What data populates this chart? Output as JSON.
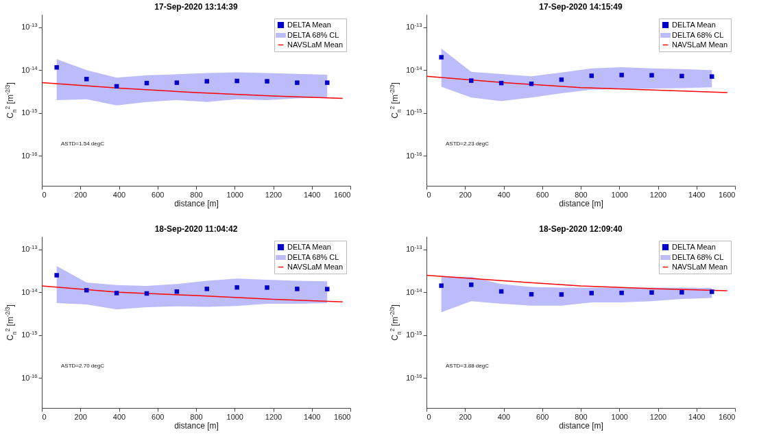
{
  "chart_data": [
    {
      "type": "scatter",
      "title": "17-Sep-2020 13:14:39",
      "xlabel": "distance [m]",
      "ylabel": "C$_{n}$$^{2}$ [m$^{-2/3}$]",
      "log": true,
      "legend": "top right",
      "xlim": [
        0,
        1600
      ],
      "xticks": [
        0,
        200,
        400,
        600,
        800,
        1000,
        1200,
        1400,
        1600
      ],
      "ylim": [
        2e-17,
        2e-13
      ],
      "yticks": [
        {
          "value": 1e-16,
          "label": "10$^{-16}$"
        },
        {
          "value": 1e-15,
          "label": "10$^{-15}$"
        },
        {
          "value": 1e-14,
          "label": "10$^{-14}$"
        },
        {
          "value": 1e-13,
          "label": "10$^{-13}$"
        }
      ],
      "annotations": [
        "ASTD=1.54 degC"
      ],
      "series": [
        {
          "name": "DELTA Mean",
          "marker": "square",
          "color": "#0000c8",
          "x": [
            77,
            232,
            388,
            544,
            700,
            856,
            1012,
            1168,
            1324,
            1480
          ],
          "values": [
            1.16e-14,
            6.2e-15,
            4.2e-15,
            5e-15,
            5.1e-15,
            5.5e-15,
            5.6e-15,
            5.5e-15,
            5.1e-15,
            5.1e-15
          ]
        },
        {
          "name": "DELTA 68% CL",
          "type": "area",
          "color": "#bcbcfa",
          "x": [
            77,
            232,
            388,
            544,
            700,
            856,
            1012,
            1168,
            1324,
            1480
          ],
          "values": [
            null,
            null,
            null,
            null,
            null,
            null,
            null,
            null,
            null,
            null
          ],
          "lower": [
            2e-15,
            2.1e-15,
            1.5e-15,
            1.8e-15,
            2e-15,
            1.8e-15,
            2.1e-15,
            2e-15,
            2.2e-15,
            2.3e-15
          ],
          "upper": [
            1.8e-14,
            1e-14,
            6.7e-15,
            7.6e-15,
            8e-15,
            8.6e-15,
            8.9e-15,
            8.6e-15,
            8.2e-15,
            7.8e-15
          ]
        },
        {
          "name": "NAVSLaM Mean",
          "type": "line",
          "color": "#ff0000",
          "x": [
            0,
            400,
            800,
            1200,
            1560
          ],
          "values": [
            5.1e-15,
            3.8e-15,
            3e-15,
            2.5e-15,
            2.2e-15
          ]
        }
      ]
    },
    {
      "type": "scatter",
      "title": "17-Sep-2020 14:15:49",
      "xlabel": "distance [m]",
      "ylabel": "C$_{n}$$^{2}$ [m$^{-2/3}$]",
      "log": true,
      "legend": "top right",
      "xlim": [
        0,
        1600
      ],
      "xticks": [
        0,
        200,
        400,
        600,
        800,
        1000,
        1200,
        1400,
        1600
      ],
      "ylim": [
        2e-17,
        2e-13
      ],
      "yticks": [
        {
          "value": 1e-16,
          "label": "10$^{-16}$"
        },
        {
          "value": 1e-15,
          "label": "10$^{-15}$"
        },
        {
          "value": 1e-14,
          "label": "10$^{-14}$"
        },
        {
          "value": 1e-13,
          "label": "10$^{-13}$"
        }
      ],
      "annotations": [
        "ASTD=2.23 degC"
      ],
      "series": [
        {
          "name": "DELTA Mean",
          "marker": "square",
          "color": "#0000c8",
          "x": [
            77,
            232,
            388,
            544,
            700,
            856,
            1012,
            1168,
            1324,
            1480
          ],
          "values": [
            2e-14,
            5.7e-15,
            5e-15,
            4.8e-15,
            6e-15,
            7.4e-15,
            7.7e-15,
            7.6e-15,
            7.3e-15,
            7.1e-15
          ]
        },
        {
          "name": "DELTA 68% CL",
          "type": "area",
          "color": "#bcbcfa",
          "x": [
            77,
            232,
            388,
            544,
            700,
            856,
            1012,
            1168,
            1324,
            1480
          ],
          "values": [
            null,
            null,
            null,
            null,
            null,
            null,
            null,
            null,
            null,
            null
          ],
          "lower": [
            4.1e-15,
            2.3e-15,
            1.9e-15,
            2.3e-15,
            2.9e-15,
            3.5e-15,
            3.6e-15,
            3.7e-15,
            3.8e-15,
            4e-15
          ],
          "upper": [
            3.2e-14,
            9.1e-15,
            8.1e-15,
            7.2e-15,
            8.8e-15,
            1.1e-14,
            1.17e-14,
            1.1e-14,
            1.06e-14,
            1e-14
          ]
        },
        {
          "name": "NAVSLaM Mean",
          "type": "line",
          "color": "#ff0000",
          "x": [
            0,
            400,
            800,
            1200,
            1560
          ],
          "values": [
            7.2e-15,
            5.1e-15,
            3.9e-15,
            3.4e-15,
            3e-15
          ]
        }
      ]
    },
    {
      "type": "scatter",
      "title": "18-Sep-2020 11:04:42",
      "xlabel": "distance [m]",
      "ylabel": "C$_{n}$$^{2}$ [m$^{-2/3}$]",
      "log": true,
      "legend": "top right",
      "xlim": [
        0,
        1600
      ],
      "xticks": [
        0,
        200,
        400,
        600,
        800,
        1000,
        1200,
        1400,
        1600
      ],
      "ylim": [
        2e-17,
        2e-13
      ],
      "yticks": [
        {
          "value": 1e-16,
          "label": "10$^{-16}$"
        },
        {
          "value": 1e-15,
          "label": "10$^{-15}$"
        },
        {
          "value": 1e-14,
          "label": "10$^{-14}$"
        },
        {
          "value": 1e-13,
          "label": "10$^{-13}$"
        }
      ],
      "annotations": [
        "ASTD=2.70 degC"
      ],
      "series": [
        {
          "name": "DELTA Mean",
          "marker": "square",
          "color": "#0000c8",
          "x": [
            77,
            232,
            388,
            544,
            700,
            856,
            1012,
            1168,
            1324,
            1480
          ],
          "values": [
            2.5e-14,
            1.12e-14,
            9.6e-15,
            9.4e-15,
            1.04e-14,
            1.2e-14,
            1.3e-14,
            1.29e-14,
            1.2e-14,
            1.19e-14
          ]
        },
        {
          "name": "DELTA 68% CL",
          "type": "area",
          "color": "#bcbcfa",
          "x": [
            77,
            232,
            388,
            544,
            700,
            856,
            1012,
            1168,
            1324,
            1480
          ],
          "values": [
            null,
            null,
            null,
            null,
            null,
            null,
            null,
            null,
            null,
            null
          ],
          "lower": [
            5.6e-15,
            5.2e-15,
            4e-15,
            4.5e-15,
            4.7e-15,
            4.6e-15,
            4.8e-15,
            5.4e-15,
            5.4e-15,
            5.6e-15
          ],
          "upper": [
            4.1e-14,
            1.7e-14,
            1.48e-14,
            1.41e-14,
            1.56e-14,
            1.86e-14,
            2.1e-14,
            1.96e-14,
            1.86e-14,
            1.8e-14
          ]
        },
        {
          "name": "NAVSLaM Mean",
          "type": "line",
          "color": "#ff0000",
          "x": [
            0,
            400,
            800,
            1200,
            1560
          ],
          "values": [
            1.41e-14,
            1e-14,
            8.4e-15,
            6.9e-15,
            6e-15
          ]
        }
      ]
    },
    {
      "type": "scatter",
      "title": "18-Sep-2020 12:09:40",
      "xlabel": "distance [m]",
      "ylabel": "C$_{n}$$^{2}$ [m$^{-2/3}$]",
      "log": true,
      "legend": "top right",
      "xlim": [
        0,
        1600
      ],
      "xticks": [
        0,
        200,
        400,
        600,
        800,
        1000,
        1200,
        1400,
        1600
      ],
      "ylim": [
        2e-17,
        2e-13
      ],
      "yticks": [
        {
          "value": 1e-16,
          "label": "10$^{-16}$"
        },
        {
          "value": 1e-15,
          "label": "10$^{-15}$"
        },
        {
          "value": 1e-14,
          "label": "10$^{-14}$"
        },
        {
          "value": 1e-13,
          "label": "10$^{-13}$"
        }
      ],
      "annotations": [
        "ASTD=3.88 degC"
      ],
      "series": [
        {
          "name": "DELTA Mean",
          "marker": "square",
          "color": "#0000c8",
          "x": [
            77,
            232,
            388,
            544,
            700,
            856,
            1012,
            1168,
            1324,
            1480
          ],
          "values": [
            1.43e-14,
            1.5e-14,
            1.05e-14,
            9e-15,
            8.9e-15,
            9.6e-15,
            9.7e-15,
            9.9e-15,
            1e-14,
            1.03e-14
          ]
        },
        {
          "name": "DELTA 68% CL",
          "type": "area",
          "color": "#bcbcfa",
          "x": [
            77,
            232,
            388,
            544,
            700,
            856,
            1012,
            1168,
            1324,
            1480
          ],
          "values": [
            null,
            null,
            null,
            null,
            null,
            null,
            null,
            null,
            null,
            null
          ],
          "lower": [
            3.4e-15,
            6.2e-15,
            5.4e-15,
            4.9e-15,
            4.9e-15,
            5.8e-15,
            5.8e-15,
            6.2e-15,
            7e-15,
            7.4e-15
          ],
          "upper": [
            2.3e-14,
            2.3e-14,
            1.56e-14,
            1.33e-14,
            1.29e-14,
            1.29e-14,
            1.29e-14,
            1.29e-14,
            1.29e-14,
            1.26e-14
          ]
        },
        {
          "name": "NAVSLaM Mean",
          "type": "line",
          "color": "#ff0000",
          "x": [
            0,
            400,
            800,
            1200,
            1560
          ],
          "values": [
            2.5e-14,
            1.85e-14,
            1.41e-14,
            1.21e-14,
            1.09e-14
          ]
        }
      ]
    }
  ]
}
